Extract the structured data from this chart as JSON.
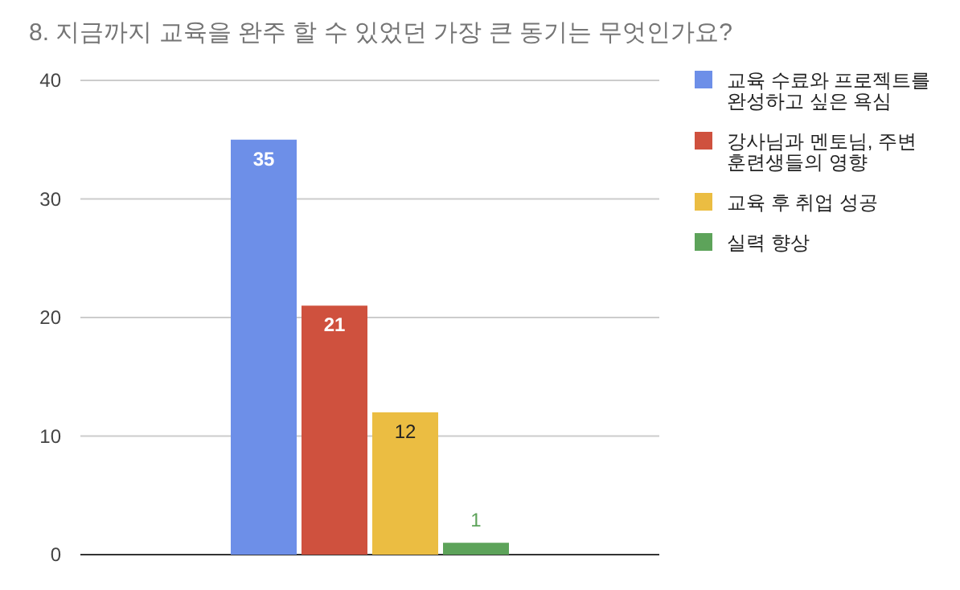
{
  "chart_data": {
    "type": "bar",
    "title": "8. 지금까지 교육을 완주 할 수 있었던 가장 큰 동기는 무엇인가요?",
    "categories": [
      null
    ],
    "series": [
      {
        "name": "교육 수료와 프로젝트를 완성하고 싶은 욕심",
        "color": "#6d8fe8",
        "values": [
          35
        ]
      },
      {
        "name": "강사님과 멘토님, 주변 훈련생들의 영향",
        "color": "#cf513e",
        "values": [
          21
        ]
      },
      {
        "name": "교육 후 취업 성공",
        "color": "#ebbd42",
        "values": [
          12
        ]
      },
      {
        "name": "실력 향상",
        "color": "#5da35a",
        "values": [
          1
        ]
      }
    ],
    "ylim": [
      0,
      40
    ],
    "yticks": [
      0,
      10,
      20,
      30,
      40
    ],
    "grid": "y",
    "legend": "right",
    "data_labels": true
  }
}
